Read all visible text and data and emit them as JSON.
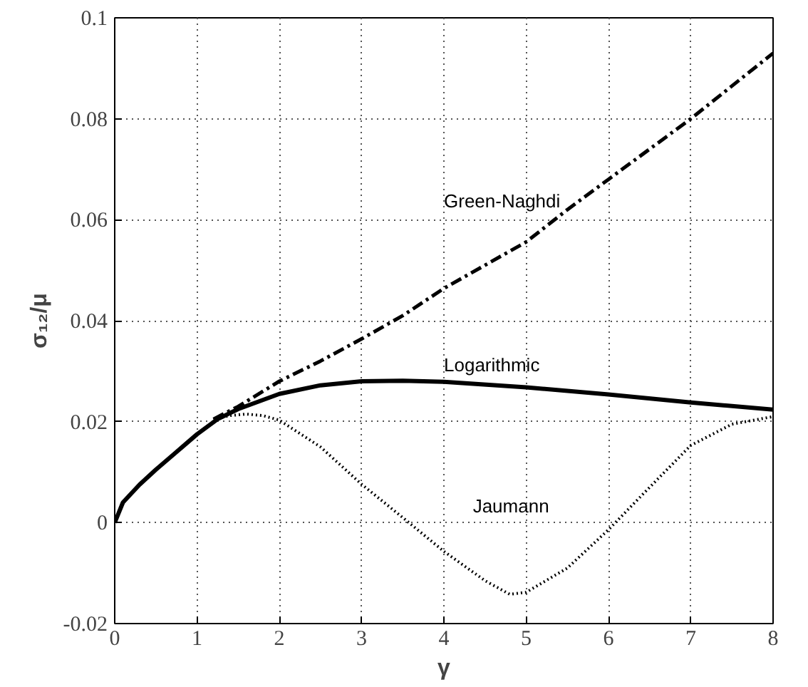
{
  "chart_data": {
    "type": "line",
    "xlabel": "γ",
    "ylabel": "σ₁₂/μ",
    "xlim": [
      0,
      8
    ],
    "ylim": [
      -0.02,
      0.1
    ],
    "xticks": [
      0,
      1,
      2,
      3,
      4,
      5,
      6,
      7,
      8
    ],
    "yticks": [
      -0.02,
      0,
      0.02,
      0.04,
      0.06,
      0.08,
      0.1
    ],
    "grid": true,
    "series": [
      {
        "color": "#000000",
        "line_style": "dashdot",
        "x": [
          1.2,
          1.5,
          2,
          2.5,
          3,
          3.5,
          4,
          4.5,
          5,
          5.5,
          6,
          6.5,
          7,
          7.5,
          8
        ],
        "values": [
          0.0205,
          0.023,
          0.028,
          0.032,
          0.0364,
          0.041,
          0.0464,
          0.051,
          0.0556,
          0.062,
          0.068,
          0.074,
          0.08,
          0.0865,
          0.093
        ]
      },
      {
        "color": "#000000",
        "line_style": "solid",
        "x": [
          0,
          0.1,
          0.3,
          0.5,
          0.75,
          1,
          1.25,
          1.5,
          2,
          2.5,
          3,
          3.5,
          4,
          5,
          6,
          7,
          8
        ],
        "values": [
          0,
          0.004,
          0.0075,
          0.0105,
          0.014,
          0.0175,
          0.0205,
          0.0225,
          0.0255,
          0.0272,
          0.028,
          0.0281,
          0.0279,
          0.0268,
          0.0254,
          0.0238,
          0.0224
        ]
      },
      {
        "color": "#000000",
        "line_style": "dotted",
        "x": [
          1.2,
          1.4,
          1.6,
          1.8,
          2,
          2.5,
          3,
          3.5,
          4,
          4.5,
          4.8,
          5,
          5.5,
          6,
          6.5,
          7,
          7.5,
          8
        ],
        "values": [
          0.0205,
          0.0212,
          0.0215,
          0.0212,
          0.0203,
          0.015,
          0.0076,
          0.001,
          -0.0057,
          -0.0115,
          -0.0142,
          -0.0138,
          -0.009,
          -0.0014,
          0.007,
          0.0153,
          0.0195,
          0.021
        ]
      }
    ],
    "annotations": [
      "Green-Naghdi",
      "Logarithmic",
      "Jaumann"
    ]
  }
}
